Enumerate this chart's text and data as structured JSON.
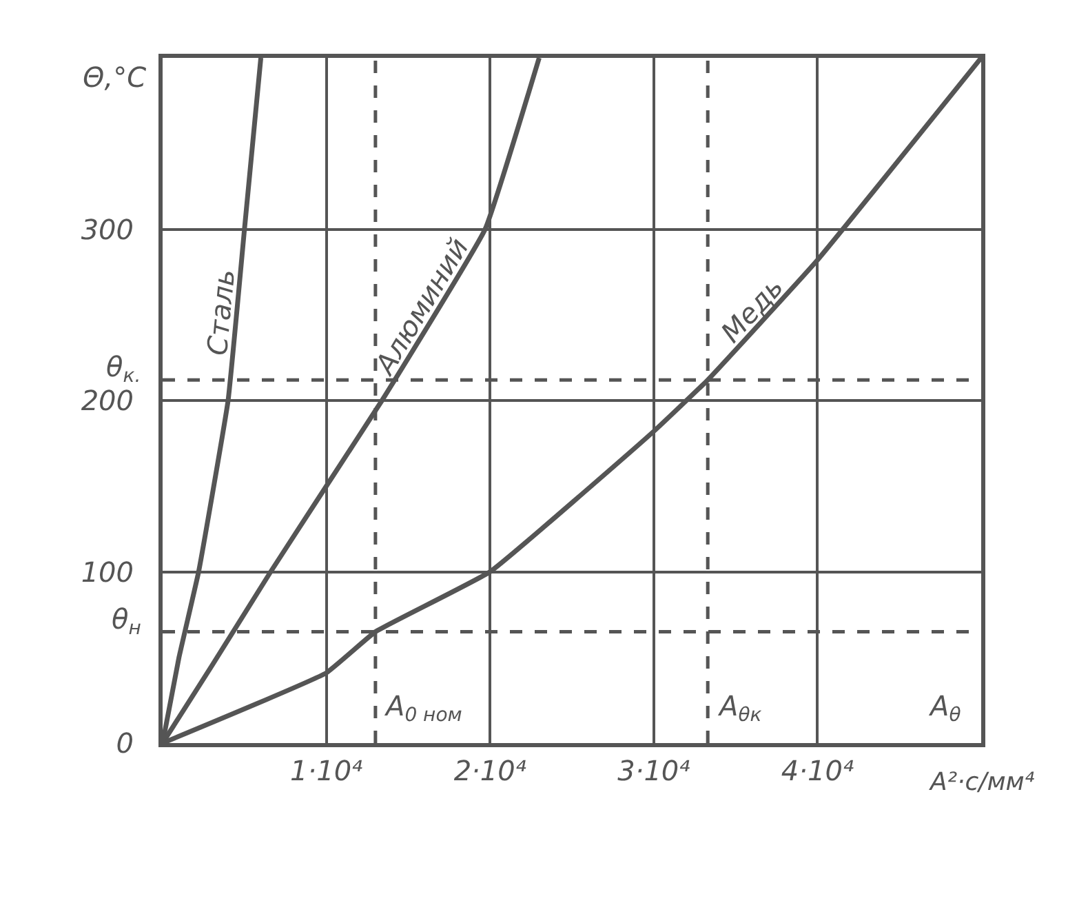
{
  "chart_data": {
    "type": "line",
    "ylabel": "Θ,°C",
    "xlabel": "A²·c/мм⁴",
    "xlim": [
      0,
      50000
    ],
    "ylim": [
      0,
      400
    ],
    "xticks": [
      {
        "value": 10000,
        "label": "1·10⁴"
      },
      {
        "value": 20000,
        "label": "2·10⁴"
      },
      {
        "value": 30000,
        "label": "3·10⁴"
      },
      {
        "value": 40000,
        "label": "4·10⁴"
      }
    ],
    "yticks": [
      0,
      100,
      200,
      300
    ],
    "grid": true,
    "legend": false,
    "marker": "none",
    "line_style": "solid",
    "series": [
      {
        "name": "Сталь",
        "color": "#555555",
        "x": [
          0,
          1000,
          2200,
          4000,
          5000,
          6000
        ],
        "values": [
          0,
          50,
          100,
          200,
          300,
          400
        ]
      },
      {
        "name": "Алюминий",
        "color": "#555555",
        "x": [
          0,
          3000,
          6600,
          10000,
          13400,
          19700,
          23000
        ],
        "values": [
          0,
          45,
          100,
          150,
          200,
          300,
          400
        ]
      },
      {
        "name": "Медь",
        "color": "#555555",
        "x": [
          0,
          10000,
          13000,
          20000,
          30000,
          33300,
          40000,
          50000
        ],
        "values": [
          0,
          41,
          65,
          100,
          182,
          212,
          282,
          400
        ]
      }
    ],
    "ref_lines": [
      {
        "axis": "y",
        "value": 212,
        "label": "θ$_{к.}$",
        "line_style": "dashed"
      },
      {
        "axis": "y",
        "value": 65,
        "label": "θ$_{н}$",
        "line_style": "dashed"
      },
      {
        "axis": "x",
        "value": 13000,
        "label": "A$_{0 ном}$",
        "line_style": "dashed"
      },
      {
        "axis": "x",
        "value": 33300,
        "label": "A$_{θк}$",
        "line_style": "dashed"
      }
    ],
    "annotations": [
      "A$_{θ}$"
    ]
  }
}
